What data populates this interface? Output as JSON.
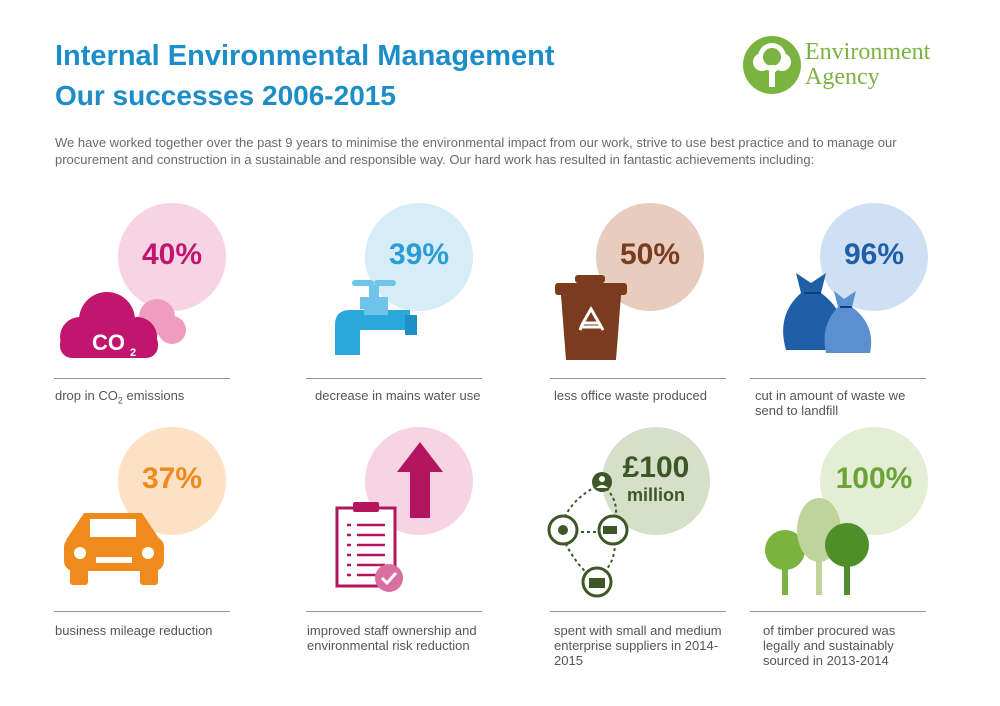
{
  "header": {
    "title": "Internal Environmental Management",
    "subtitle": "Our successes 2006-2015",
    "intro": "We have worked together over the past 9 years to minimise the environmental impact from our work, strive to use best practice and to manage our procurement and construction in a sustainable and responsible way. Our hard work has resulted in fantastic achievements including:"
  },
  "logo": {
    "line1": "Environment",
    "line2": "Agency"
  },
  "stats": [
    {
      "value": "40%",
      "caption_pre": "drop in CO",
      "caption_sub": "2",
      "caption_post": " emissions",
      "icon": "co2-cloud-icon",
      "color": "#c1166f",
      "bubble": "#f8d3e4",
      "icon_text": "CO",
      "icon_sub": "2"
    },
    {
      "value": "39%",
      "caption": "decrease in mains water use",
      "icon": "water-tap-icon",
      "color": "#2a9dd6",
      "bubble": "#d6ecf7"
    },
    {
      "value": "50%",
      "caption": "less office waste produced",
      "icon": "recycling-bin-icon",
      "color": "#7a3b1e",
      "bubble": "#e8cdbf"
    },
    {
      "value": "96%",
      "caption": "cut in amount of waste we send to landfill",
      "icon": "waste-sacks-icon",
      "color": "#1f5fa8",
      "bubble": "#cfe0f4"
    },
    {
      "value": "37%",
      "caption": "business mileage reduction",
      "icon": "car-icon",
      "color": "#ef8b1c",
      "bubble": "#fde1c4"
    },
    {
      "value": "",
      "caption": "improved staff ownership and environmental risk reduction",
      "icon": "clipboard-arrow-icon",
      "color": "#b3155f",
      "bubble": "#f8d3e4"
    },
    {
      "value": "£100",
      "value2": "million",
      "caption": "spent with small and medium enterprise suppliers in 2014-2015",
      "icon": "supplier-network-icon",
      "color": "#3e5726",
      "bubble": "#d6dfca"
    },
    {
      "value": "100%",
      "caption": "of timber procured was legally and sustainably sourced in 2013-2014",
      "icon": "trees-icon",
      "color": "#6aa336",
      "bubble": "#e3eed4"
    }
  ]
}
